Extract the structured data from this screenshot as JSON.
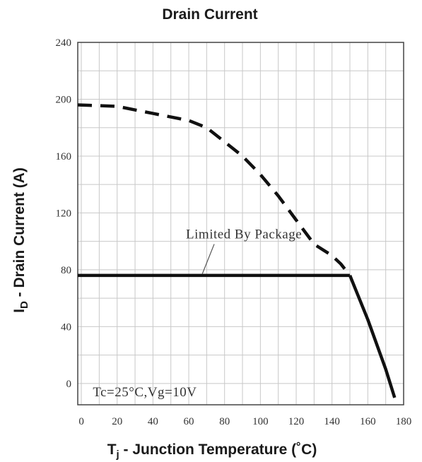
{
  "chart_data": {
    "type": "line",
    "title": "Drain Current",
    "xlabel": "T",
    "xlabel_sub": "j",
    "xlabel_rest": " - Junction Temperature (˚C)",
    "ylabel": "I",
    "ylabel_sub": "D",
    "ylabel_rest": " - Drain Current (A)",
    "xlim": [
      -2,
      180
    ],
    "ylim": [
      -15,
      240
    ],
    "x_ticks": [
      0,
      20,
      40,
      60,
      80,
      100,
      120,
      140,
      160,
      180
    ],
    "y_ticks": [
      0,
      40,
      80,
      120,
      160,
      200,
      240
    ],
    "grid": true,
    "series": [
      {
        "style": "dashed",
        "x": [
          -2,
          20,
          40,
          60,
          70,
          80,
          90,
          100,
          110,
          120,
          130,
          140,
          145,
          150
        ],
        "y": [
          196,
          195,
          190,
          185,
          180,
          170,
          160,
          147,
          132,
          115,
          98,
          90,
          84,
          76
        ]
      },
      {
        "style": "solid",
        "x": [
          -2,
          150
        ],
        "y": [
          76,
          76
        ]
      },
      {
        "style": "solid",
        "x": [
          150,
          160,
          170,
          175
        ],
        "y": [
          76,
          45,
          10,
          -10
        ]
      }
    ],
    "annotations": [
      {
        "text": "Limited By Package",
        "x": 60,
        "y": 108,
        "arrow_to": [
          62,
          76
        ]
      },
      {
        "text": "Tc=25°C,Vg=10V",
        "x": 8,
        "y": -3
      }
    ]
  }
}
